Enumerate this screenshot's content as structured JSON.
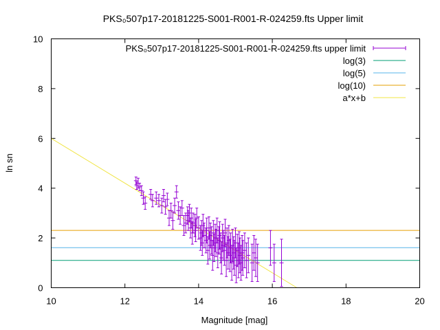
{
  "chart_data": {
    "type": "scatter",
    "title": "PKS₀507p17-20181225-S001-R001-R-024259.fts Upper limit",
    "xlabel": "Magnitude [mag]",
    "ylabel": "ln sn",
    "xlim": [
      10,
      20
    ],
    "ylim": [
      0,
      10
    ],
    "xticks": [
      10,
      12,
      14,
      16,
      18,
      20
    ],
    "yticks": [
      0,
      2,
      4,
      6,
      8,
      10
    ],
    "grid": false,
    "legend_position": "top-right",
    "colors": {
      "points": "#9400d3",
      "log3": "#009e73",
      "log5": "#56b4e9",
      "log10": "#e69f00",
      "fit": "#f0e442"
    },
    "series": [
      {
        "name": "PKS₀507p17-20181225-S001-R001-R-024259.fts upper limit",
        "kind": "errorbars",
        "points": [
          {
            "x": 12.3,
            "y": 4.3,
            "err": 0.15
          },
          {
            "x": 12.32,
            "y": 4.1,
            "err": 0.15
          },
          {
            "x": 12.36,
            "y": 4.2,
            "err": 0.2
          },
          {
            "x": 12.4,
            "y": 4.05,
            "err": 0.15
          },
          {
            "x": 12.45,
            "y": 3.9,
            "err": 0.2
          },
          {
            "x": 12.5,
            "y": 3.6,
            "err": 0.25
          },
          {
            "x": 12.55,
            "y": 3.4,
            "err": 0.25
          },
          {
            "x": 12.7,
            "y": 3.75,
            "err": 0.2
          },
          {
            "x": 12.75,
            "y": 3.5,
            "err": 0.25
          },
          {
            "x": 12.85,
            "y": 3.6,
            "err": 0.25
          },
          {
            "x": 12.92,
            "y": 3.5,
            "err": 0.25
          },
          {
            "x": 13.0,
            "y": 3.3,
            "err": 0.3
          },
          {
            "x": 13.05,
            "y": 3.7,
            "err": 0.25
          },
          {
            "x": 13.1,
            "y": 3.25,
            "err": 0.3
          },
          {
            "x": 13.15,
            "y": 3.55,
            "err": 0.25
          },
          {
            "x": 13.2,
            "y": 2.8,
            "err": 0.3
          },
          {
            "x": 13.25,
            "y": 3.1,
            "err": 0.3
          },
          {
            "x": 13.3,
            "y": 2.7,
            "err": 0.35
          },
          {
            "x": 13.35,
            "y": 3.3,
            "err": 0.3
          },
          {
            "x": 13.4,
            "y": 3.85,
            "err": 0.25
          },
          {
            "x": 13.45,
            "y": 3.1,
            "err": 0.35
          },
          {
            "x": 13.5,
            "y": 2.9,
            "err": 0.35
          },
          {
            "x": 13.55,
            "y": 3.2,
            "err": 0.3
          },
          {
            "x": 13.6,
            "y": 2.5,
            "err": 0.4
          },
          {
            "x": 13.65,
            "y": 2.6,
            "err": 0.4
          },
          {
            "x": 13.7,
            "y": 2.9,
            "err": 0.35
          },
          {
            "x": 13.72,
            "y": 2.7,
            "err": 0.4
          },
          {
            "x": 13.75,
            "y": 3.0,
            "err": 0.35
          },
          {
            "x": 13.78,
            "y": 2.4,
            "err": 0.4
          },
          {
            "x": 13.8,
            "y": 2.8,
            "err": 0.4
          },
          {
            "x": 13.83,
            "y": 2.2,
            "err": 0.45
          },
          {
            "x": 13.85,
            "y": 2.6,
            "err": 0.4
          },
          {
            "x": 13.9,
            "y": 2.5,
            "err": 0.45
          },
          {
            "x": 13.92,
            "y": 2.3,
            "err": 0.45
          },
          {
            "x": 13.95,
            "y": 2.8,
            "err": 0.4
          },
          {
            "x": 14.0,
            "y": 2.4,
            "err": 0.45
          },
          {
            "x": 14.05,
            "y": 2.0,
            "err": 0.5
          },
          {
            "x": 14.08,
            "y": 2.2,
            "err": 0.5
          },
          {
            "x": 14.1,
            "y": 1.8,
            "err": 0.5
          },
          {
            "x": 14.12,
            "y": 2.5,
            "err": 0.45
          },
          {
            "x": 14.15,
            "y": 2.1,
            "err": 0.5
          },
          {
            "x": 14.2,
            "y": 1.9,
            "err": 0.5
          },
          {
            "x": 14.22,
            "y": 2.3,
            "err": 0.5
          },
          {
            "x": 14.25,
            "y": 1.5,
            "err": 0.55
          },
          {
            "x": 14.28,
            "y": 2.4,
            "err": 0.45
          },
          {
            "x": 14.3,
            "y": 1.7,
            "err": 0.55
          },
          {
            "x": 14.32,
            "y": 2.1,
            "err": 0.5
          },
          {
            "x": 14.35,
            "y": 1.9,
            "err": 0.55
          },
          {
            "x": 14.38,
            "y": 1.3,
            "err": 0.6
          },
          {
            "x": 14.4,
            "y": 2.2,
            "err": 0.5
          },
          {
            "x": 14.42,
            "y": 1.6,
            "err": 0.55
          },
          {
            "x": 14.45,
            "y": 2.0,
            "err": 0.55
          },
          {
            "x": 14.47,
            "y": 1.8,
            "err": 0.55
          },
          {
            "x": 14.5,
            "y": 2.3,
            "err": 0.5
          },
          {
            "x": 14.52,
            "y": 1.4,
            "err": 0.6
          },
          {
            "x": 14.55,
            "y": 1.9,
            "err": 0.55
          },
          {
            "x": 14.57,
            "y": 2.1,
            "err": 0.55
          },
          {
            "x": 14.6,
            "y": 1.6,
            "err": 0.6
          },
          {
            "x": 14.62,
            "y": 1.2,
            "err": 0.65
          },
          {
            "x": 14.65,
            "y": 2.0,
            "err": 0.55
          },
          {
            "x": 14.67,
            "y": 1.7,
            "err": 0.6
          },
          {
            "x": 14.7,
            "y": 1.5,
            "err": 0.6
          },
          {
            "x": 14.72,
            "y": 2.2,
            "err": 0.55
          },
          {
            "x": 14.75,
            "y": 1.1,
            "err": 0.65
          },
          {
            "x": 14.77,
            "y": 1.8,
            "err": 0.6
          },
          {
            "x": 14.8,
            "y": 1.4,
            "err": 0.65
          },
          {
            "x": 14.82,
            "y": 1.9,
            "err": 0.6
          },
          {
            "x": 14.85,
            "y": 1.3,
            "err": 0.65
          },
          {
            "x": 14.87,
            "y": 1.6,
            "err": 0.6
          },
          {
            "x": 14.9,
            "y": 1.0,
            "err": 0.7
          },
          {
            "x": 14.92,
            "y": 1.7,
            "err": 0.65
          },
          {
            "x": 14.95,
            "y": 1.4,
            "err": 0.65
          },
          {
            "x": 14.97,
            "y": 1.2,
            "err": 0.7
          },
          {
            "x": 15.0,
            "y": 1.8,
            "err": 0.6
          },
          {
            "x": 15.02,
            "y": 0.9,
            "err": 0.7
          },
          {
            "x": 15.05,
            "y": 1.5,
            "err": 0.65
          },
          {
            "x": 15.08,
            "y": 1.1,
            "err": 0.7
          },
          {
            "x": 15.1,
            "y": 1.6,
            "err": 0.65
          },
          {
            "x": 15.12,
            "y": 1.3,
            "err": 0.7
          },
          {
            "x": 15.15,
            "y": 1.0,
            "err": 0.7
          },
          {
            "x": 15.18,
            "y": 1.4,
            "err": 0.7
          },
          {
            "x": 15.2,
            "y": 1.2,
            "err": 0.7
          },
          {
            "x": 15.25,
            "y": 1.5,
            "err": 0.7
          },
          {
            "x": 15.3,
            "y": 1.1,
            "err": 0.7
          },
          {
            "x": 15.35,
            "y": 1.3,
            "err": 0.7
          },
          {
            "x": 15.45,
            "y": 1.0,
            "err": 0.75
          },
          {
            "x": 15.5,
            "y": 1.4,
            "err": 0.7
          },
          {
            "x": 15.55,
            "y": 1.2,
            "err": 0.75
          },
          {
            "x": 15.6,
            "y": 1.0,
            "err": 0.75
          },
          {
            "x": 15.95,
            "y": 1.6,
            "err": 0.7
          },
          {
            "x": 16.05,
            "y": 1.0,
            "err": 0.75
          },
          {
            "x": 16.25,
            "y": 1.0,
            "err": 0.95
          }
        ]
      },
      {
        "name": "log(3)",
        "kind": "hline",
        "y": 1.0986
      },
      {
        "name": "log(5)",
        "kind": "hline",
        "y": 1.6094
      },
      {
        "name": "log(10)",
        "kind": "hline",
        "y": 2.3026
      },
      {
        "name": "a*x+b",
        "kind": "line",
        "a": -0.9,
        "b": 15.0
      }
    ]
  }
}
